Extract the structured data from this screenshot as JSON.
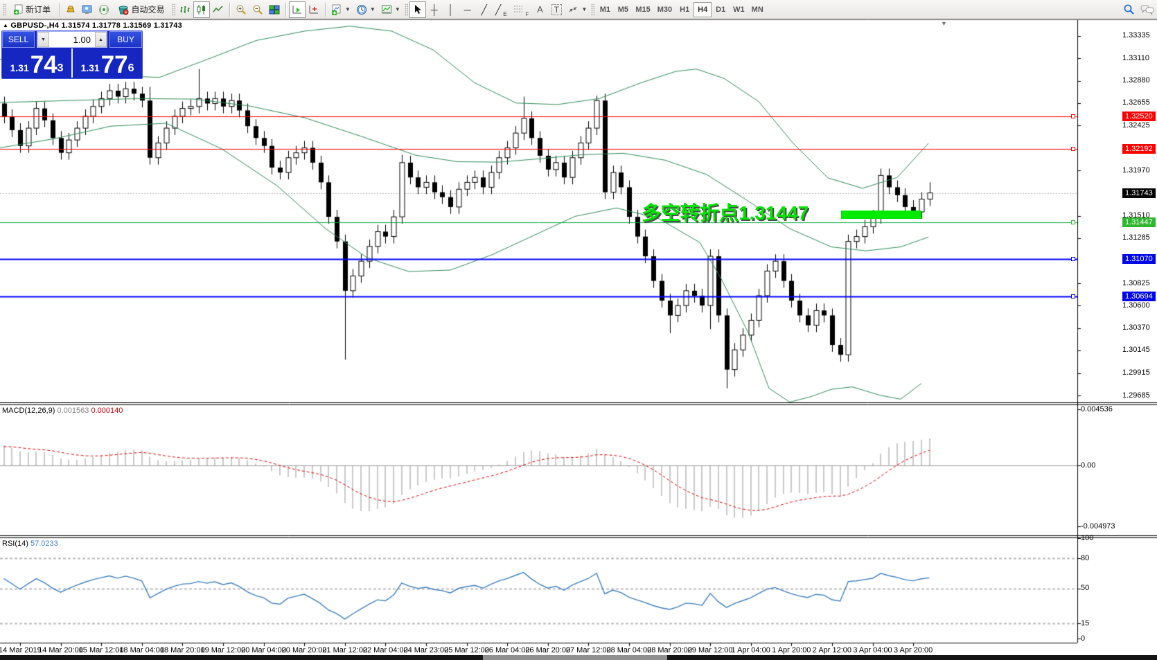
{
  "toolbar": {
    "new_order_label": "新订单",
    "autotrading_label": "自动交易",
    "timeframes": [
      "M1",
      "M5",
      "M15",
      "M30",
      "H1",
      "H4",
      "D1",
      "W1",
      "MN"
    ],
    "active_timeframe": "H4",
    "tool_channel": "E",
    "tool_fibo": "F",
    "tool_text": "A",
    "tool_label": "T"
  },
  "window": {
    "symbol_line": "GBPUSD-,H4  1.31574 1.31778 1.31569 1.31743"
  },
  "one_click": {
    "sell_label": "SELL",
    "buy_label": "BUY",
    "volume": "1.00",
    "sell_prefix": "1.31",
    "sell_main": "74",
    "sell_sup": "3",
    "buy_prefix": "1.31",
    "buy_main": "77",
    "buy_sup": "6"
  },
  "price_axis": {
    "ticks": [
      1.33335,
      1.3311,
      1.3288,
      1.32655,
      1.32425,
      1.3197,
      1.3151,
      1.31285,
      1.30825,
      1.306,
      1.3037,
      1.30145,
      1.29915,
      1.29685
    ],
    "labels": [
      {
        "text": "1.32520",
        "price": 1.3252,
        "bg": "#ff0000"
      },
      {
        "text": "1.32192",
        "price": 1.32192,
        "bg": "#ff0000"
      },
      {
        "text": "1.31743",
        "price": 1.31743,
        "bg": "#000000"
      },
      {
        "text": "1.31447",
        "price": 1.31447,
        "bg": "#2fb52f"
      },
      {
        "text": "1.31070",
        "price": 1.3107,
        "bg": "#0008e8"
      },
      {
        "text": "1.30694",
        "price": 1.30694,
        "bg": "#0008e8"
      }
    ]
  },
  "time_axis": {
    "labels": [
      "14 Mar 2019",
      "14 Mar 20:00",
      "15 Mar 12:00",
      "18 Mar 04:00",
      "18 Mar 20:00",
      "19 Mar 12:00",
      "20 Mar 04:00",
      "20 Mar 20:00",
      "21 Mar 12:00",
      "22 Mar 04:00",
      "24 Mar 23:00",
      "25 Mar 12:00",
      "26 Mar 04:00",
      "26 Mar 20:00",
      "27 Mar 12:00",
      "28 Mar 04:00",
      "28 Mar 20:00",
      "29 Mar 12:00",
      "1 Apr 04:00",
      "1 Apr 20:00",
      "2 Apr 12:00",
      "3 Apr 04:00",
      "3 Apr 20:00"
    ]
  },
  "chart_data": {
    "type": "candlestick",
    "symbol": "GBPUSD",
    "timeframe": "H4",
    "first_open": 1.3265,
    "default_wick": 0.0007,
    "closes": [
      1.3252,
      1.3238,
      1.3222,
      1.324,
      1.326,
      1.3248,
      1.323,
      1.3215,
      1.3228,
      1.324,
      1.3252,
      1.3262,
      1.327,
      1.3278,
      1.3272,
      1.328,
      1.3275,
      1.3268,
      1.321,
      1.3225,
      1.324,
      1.3252,
      1.326,
      1.3262,
      1.327,
      1.3265,
      1.327,
      1.3262,
      1.3268,
      1.3258,
      1.3242,
      1.323,
      1.3222,
      1.32,
      1.3195,
      1.321,
      1.3215,
      1.322,
      1.3205,
      1.3185,
      1.315,
      1.3125,
      1.3075,
      1.309,
      1.3105,
      1.312,
      1.3135,
      1.313,
      1.315,
      1.3205,
      1.319,
      1.318,
      1.3185,
      1.3175,
      1.317,
      1.316,
      1.3178,
      1.3185,
      1.319,
      1.318,
      1.3195,
      1.321,
      1.322,
      1.3235,
      1.325,
      1.323,
      1.3212,
      1.3198,
      1.3205,
      1.319,
      1.321,
      1.3225,
      1.324,
      1.3268,
      1.3175,
      1.3195,
      1.318,
      1.315,
      1.313,
      1.311,
      1.3085,
      1.3065,
      1.305,
      1.306,
      1.3075,
      1.307,
      1.306,
      1.311,
      1.305,
      1.2995,
      1.3015,
      1.303,
      1.3045,
      1.307,
      1.3095,
      1.3105,
      1.3085,
      1.3065,
      1.305,
      1.304,
      1.3055,
      1.305,
      1.302,
      1.301,
      1.3125,
      1.313,
      1.314,
      1.315,
      1.3192,
      1.318,
      1.3172,
      1.316,
      1.3155,
      1.3168,
      1.31743
    ],
    "specials": {
      "18": {
        "h": 1.3282
      },
      "24": {
        "h": 1.33
      },
      "42": {
        "l": 1.3005
      },
      "49": {
        "h": 1.3213
      },
      "64": {
        "h": 1.3272
      },
      "73": {
        "h": 1.3273
      },
      "74": {
        "l": 1.3168
      },
      "82": {
        "l": 1.3032
      },
      "87": {
        "l": 1.3036
      },
      "89": {
        "l": 1.2976
      },
      "104": {
        "h": 1.3132
      },
      "114": {
        "h": 1.3185
      }
    },
    "bollinger": {
      "upper": [
        [
          0,
          1.331
        ],
        [
          80,
          1.3303
        ],
        [
          160,
          1.32935
        ],
        [
          230,
          1.32915
        ],
        [
          300,
          1.331
        ],
        [
          370,
          1.3329
        ],
        [
          440,
          1.33385
        ],
        [
          505,
          1.33435
        ],
        [
          565,
          1.33385
        ],
        [
          625,
          1.33195
        ],
        [
          685,
          1.3286
        ],
        [
          745,
          1.32655
        ],
        [
          805,
          1.3264
        ],
        [
          865,
          1.327
        ],
        [
          925,
          1.3286
        ],
        [
          975,
          1.32975
        ],
        [
          1005,
          1.33
        ],
        [
          1045,
          1.32905
        ],
        [
          1095,
          1.3267
        ],
        [
          1145,
          1.32245
        ],
        [
          1195,
          1.31895
        ],
        [
          1245,
          1.3179
        ],
        [
          1295,
          1.319
        ],
        [
          1340,
          1.32245
        ]
      ],
      "middle": [
        [
          0,
          1.3266
        ],
        [
          100,
          1.3268
        ],
        [
          200,
          1.327
        ],
        [
          280,
          1.32695
        ],
        [
          360,
          1.32625
        ],
        [
          440,
          1.32505
        ],
        [
          520,
          1.3232
        ],
        [
          600,
          1.32125
        ],
        [
          660,
          1.3206
        ],
        [
          720,
          1.32055
        ],
        [
          780,
          1.3209
        ],
        [
          840,
          1.3213
        ],
        [
          900,
          1.32145
        ],
        [
          960,
          1.32075
        ],
        [
          1020,
          1.3193
        ],
        [
          1080,
          1.3166
        ],
        [
          1140,
          1.3138
        ],
        [
          1200,
          1.31195
        ],
        [
          1250,
          1.31155
        ],
        [
          1300,
          1.31195
        ],
        [
          1340,
          1.31295
        ]
      ],
      "lower": [
        [
          0,
          1.322
        ],
        [
          80,
          1.32295
        ],
        [
          160,
          1.3242
        ],
        [
          240,
          1.3245
        ],
        [
          320,
          1.3219
        ],
        [
          400,
          1.31815
        ],
        [
          470,
          1.3138
        ],
        [
          530,
          1.31085
        ],
        [
          590,
          1.30945
        ],
        [
          650,
          1.3096
        ],
        [
          710,
          1.31115
        ],
        [
          770,
          1.3131
        ],
        [
          830,
          1.31505
        ],
        [
          890,
          1.3159
        ],
        [
          950,
          1.31485
        ],
        [
          1010,
          1.3124
        ],
        [
          1040,
          1.30885
        ],
        [
          1080,
          1.30325
        ],
        [
          1110,
          1.2976
        ],
        [
          1140,
          1.2962
        ],
        [
          1170,
          1.29675
        ],
        [
          1200,
          1.2975
        ],
        [
          1230,
          1.29775
        ],
        [
          1270,
          1.2969
        ],
        [
          1300,
          1.2965
        ],
        [
          1330,
          1.2981
        ]
      ]
    },
    "levels": [
      {
        "price": 1.3252,
        "color": "#ff0000",
        "width": 1
      },
      {
        "price": 1.32192,
        "color": "#ff0000",
        "width": 1
      },
      {
        "price": 1.31447,
        "color": "#00a838",
        "width": 1
      },
      {
        "price": 1.3107,
        "color": "#0000ff",
        "width": 2
      },
      {
        "price": 1.30694,
        "color": "#0000ff",
        "width": 2
      }
    ],
    "current_price": 1.31743,
    "annotation": {
      "text": "多空转折点1.31447",
      "color": "#00e400"
    },
    "macd": {
      "name": "MACD(12,26,9)",
      "value": "0.001563",
      "signal_value": "0.000140",
      "axis": [
        {
          "text": "0.004536",
          "v": 0.004536
        },
        {
          "text": "0.00",
          "v": 0.0
        },
        {
          "text": "-0.004973",
          "v": -0.004973
        }
      ]
    },
    "rsi": {
      "name": "RSI(14)",
      "value": "57.0233",
      "axis": [
        {
          "text": "100",
          "v": 100
        },
        {
          "text": "80",
          "v": 80
        },
        {
          "text": "50",
          "v": 50
        },
        {
          "text": "15",
          "v": 15
        },
        {
          "text": "0",
          "v": 0
        }
      ],
      "levels": [
        80,
        50,
        15
      ]
    }
  }
}
